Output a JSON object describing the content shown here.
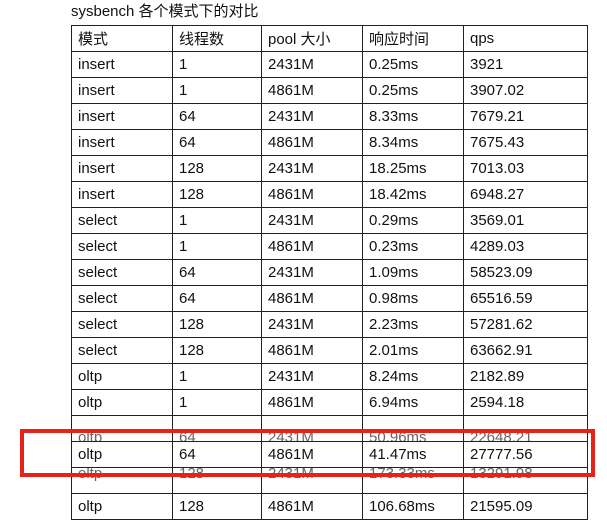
{
  "title": "sysbench 各个模式下的对比",
  "table": {
    "headers": [
      "模式",
      "线程数",
      "pool 大小",
      "响应时间",
      "qps"
    ],
    "rows": [
      [
        "insert",
        "1",
        "2431M",
        "0.25ms",
        "3921"
      ],
      [
        "insert",
        "1",
        "4861M",
        "0.25ms",
        "3907.02"
      ],
      [
        "insert",
        "64",
        "2431M",
        "8.33ms",
        "7679.21"
      ],
      [
        "insert",
        "64",
        "4861M",
        "8.34ms",
        "7675.43"
      ],
      [
        "insert",
        "128",
        "2431M",
        "18.25ms",
        "7013.03"
      ],
      [
        "insert",
        "128",
        "4861M",
        "18.42ms",
        "6948.27"
      ],
      [
        "select",
        "1",
        "2431M",
        "0.29ms",
        "3569.01"
      ],
      [
        "select",
        "1",
        "4861M",
        "0.23ms",
        "4289.03"
      ],
      [
        "select",
        "64",
        "2431M",
        "1.09ms",
        "58523.09"
      ],
      [
        "select",
        "64",
        "4861M",
        "0.98ms",
        "65516.59"
      ],
      [
        "select",
        "128",
        "2431M",
        "2.23ms",
        "57281.62"
      ],
      [
        "select",
        "128",
        "4861M",
        "2.01ms",
        "63662.91"
      ],
      [
        "oltp",
        "1",
        "2431M",
        "8.24ms",
        "2182.89"
      ],
      [
        "oltp",
        "1",
        "4861M",
        "6.94ms",
        "2594.18"
      ],
      [
        "oltp",
        "64",
        "2431M",
        "50.96ms",
        "22648.21"
      ],
      [
        "oltp",
        "64",
        "4861M",
        "41.47ms",
        "27777.56"
      ],
      [
        "oltp",
        "128",
        "2431M",
        "173.33ms",
        "13291.98"
      ],
      [
        "oltp",
        "128",
        "4861M",
        "106.68ms",
        "21595.09"
      ]
    ]
  },
  "highlight": {
    "color": "#e8221b",
    "row_index": 15
  }
}
